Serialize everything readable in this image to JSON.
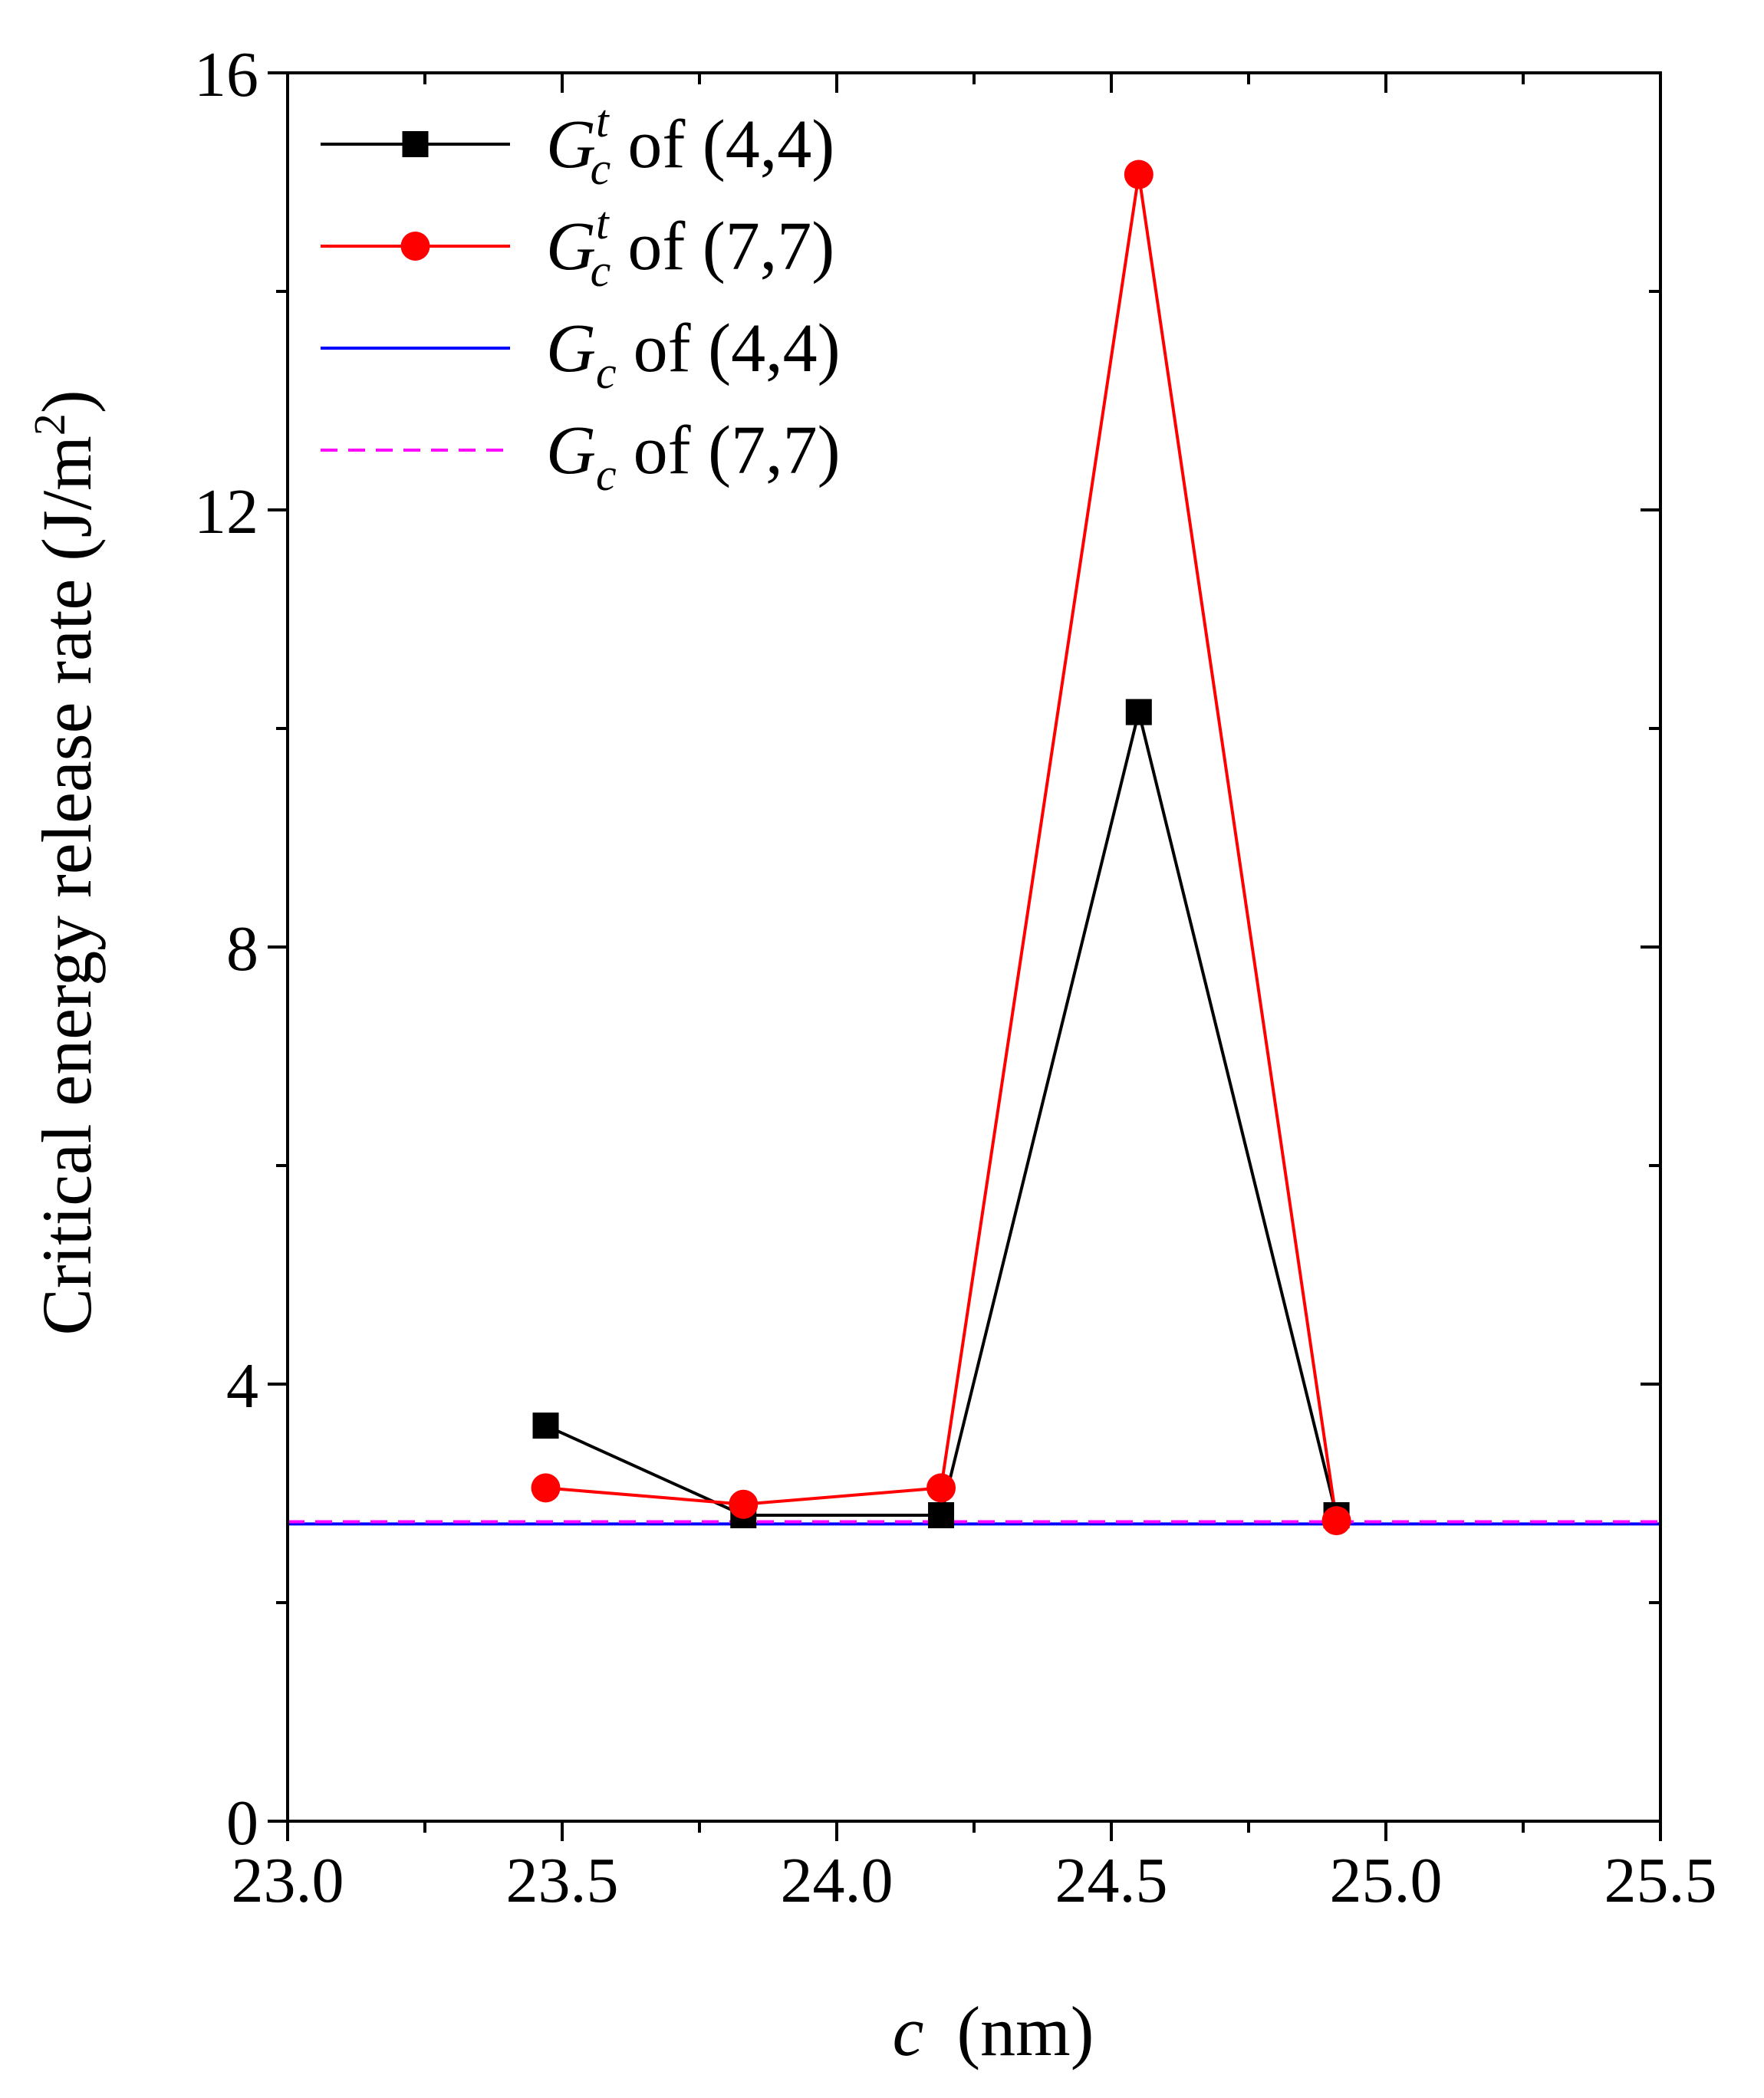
{
  "chart_data": {
    "type": "line",
    "xlabel_var": "c",
    "xlabel_unit": "(nm)",
    "ylabel": "Critical energy release rate (J/m",
    "ylabel_sup": "2",
    "ylabel_close": ")",
    "xlim": [
      23.0,
      25.5
    ],
    "ylim": [
      0,
      16
    ],
    "xticks": [
      23.0,
      23.5,
      24.0,
      24.5,
      25.0,
      25.5
    ],
    "xtick_labels": [
      "23.0",
      "23.5",
      "24.0",
      "24.5",
      "25.0",
      "25.5"
    ],
    "yticks": [
      0,
      4,
      8,
      12,
      16
    ],
    "ytick_labels": [
      "0",
      "4",
      "8",
      "12",
      "16"
    ],
    "x_minor_step": 0.25,
    "y_minor_step": 2,
    "series": [
      {
        "name_main": "G",
        "name_sub": "c",
        "name_sup": "t",
        "name_tail": "of (4,4)",
        "color": "#000000",
        "marker": "square",
        "style": "solid",
        "x": [
          23.47,
          23.83,
          24.19,
          24.55,
          24.91
        ],
        "values": [
          3.62,
          2.8,
          2.8,
          10.15,
          2.8
        ]
      },
      {
        "name_main": "G",
        "name_sub": "c",
        "name_sup": "t",
        "name_tail": "of (7,7)",
        "color": "#ff0000",
        "marker": "circle",
        "style": "solid",
        "x": [
          23.47,
          23.83,
          24.19,
          24.55,
          24.91
        ],
        "values": [
          3.05,
          2.9,
          3.05,
          15.07,
          2.75
        ]
      },
      {
        "name_main": "G",
        "name_sub": "c",
        "name_sup": "",
        "name_tail": "of (4,4)",
        "color": "#0000ff",
        "marker": "none",
        "style": "solid",
        "x": [
          23.0,
          25.5
        ],
        "values": [
          2.72,
          2.72
        ]
      },
      {
        "name_main": "G",
        "name_sub": "c",
        "name_sup": "",
        "name_tail": "of (7,7)",
        "color": "#ff00ff",
        "marker": "none",
        "style": "dashed",
        "x": [
          23.0,
          25.5
        ],
        "values": [
          2.74,
          2.74
        ]
      }
    ],
    "legend_position": "top-left"
  }
}
